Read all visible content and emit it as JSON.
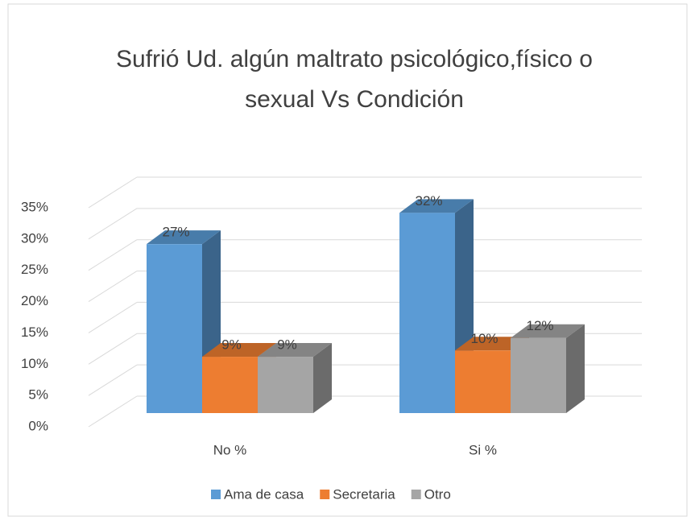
{
  "chart_data": {
    "type": "bar3d",
    "title": "Sufrió Ud. algún maltrato psicológico,físico o sexual Vs Condición",
    "categories": [
      "No %",
      "Si %"
    ],
    "series": [
      {
        "name": "Ama de casa",
        "color": "#5b9bd5",
        "values": [
          27,
          32
        ],
        "value_labels": [
          "27%",
          "32%"
        ]
      },
      {
        "name": "Secretaria",
        "color": "#ed7d31",
        "values": [
          9,
          10
        ],
        "value_labels": [
          "9%",
          "10%"
        ]
      },
      {
        "name": "Otro",
        "color": "#a5a5a5",
        "values": [
          9,
          12
        ],
        "value_labels": [
          "9%",
          "12%"
        ]
      }
    ],
    "ylim": [
      0,
      35
    ],
    "yticks": [
      {
        "value": 0,
        "label": "0%"
      },
      {
        "value": 5,
        "label": "5%"
      },
      {
        "value": 10,
        "label": "10%"
      },
      {
        "value": 15,
        "label": "15%"
      },
      {
        "value": 20,
        "label": "20%"
      },
      {
        "value": 25,
        "label": "25%"
      },
      {
        "value": 30,
        "label": "30%"
      },
      {
        "value": 35,
        "label": "35%"
      }
    ],
    "grid": true,
    "legend": "bottom"
  }
}
